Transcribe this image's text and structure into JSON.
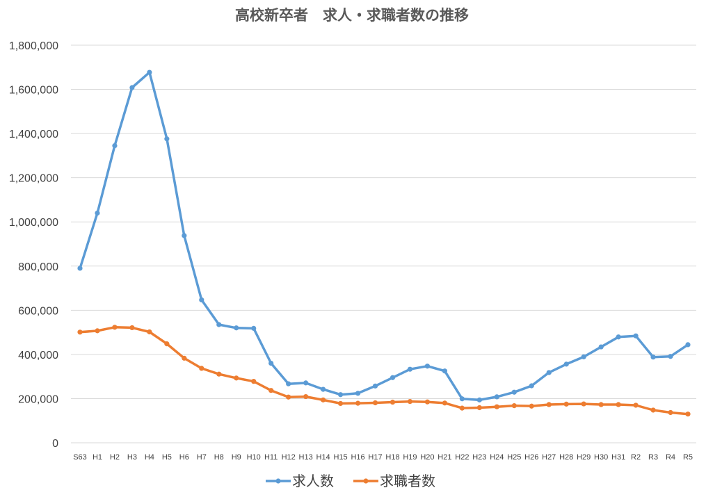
{
  "chart_data": {
    "type": "line",
    "title": "高校新卒者　求人・求職者数の推移",
    "xlabel": "",
    "ylabel": "",
    "categories": [
      "S63",
      "H1",
      "H2",
      "H3",
      "H4",
      "H5",
      "H6",
      "H7",
      "H8",
      "H9",
      "H10",
      "H11",
      "H12",
      "H13",
      "H14",
      "H15",
      "H16",
      "H17",
      "H18",
      "H19",
      "H20",
      "H21",
      "H22",
      "H23",
      "H24",
      "H25",
      "H26",
      "H27",
      "H28",
      "H29",
      "H30",
      "H31",
      "R2",
      "R3",
      "R4",
      "R5"
    ],
    "ylim": [
      0,
      1800000
    ],
    "yticks": [
      0,
      200000,
      400000,
      600000,
      800000,
      1000000,
      1200000,
      1400000,
      1600000,
      1800000
    ],
    "ytick_labels": [
      "0",
      "200,000",
      "400,000",
      "600,000",
      "800,000",
      "1,000,000",
      "1,200,000",
      "1,400,000",
      "1,600,000",
      "1,800,000"
    ],
    "grid": true,
    "legend_position": "bottom",
    "series": [
      {
        "name": "求人数",
        "color": "#5b9bd5",
        "values": [
          790000,
          1040000,
          1345000,
          1608000,
          1677000,
          1376000,
          938000,
          647000,
          535000,
          520000,
          518000,
          360000,
          267000,
          271000,
          242000,
          218000,
          224000,
          257000,
          295000,
          333000,
          347000,
          325000,
          199000,
          194000,
          208000,
          229000,
          258000,
          318000,
          356000,
          389000,
          434000,
          479000,
          484000,
          388000,
          391000,
          444000
        ]
      },
      {
        "name": "求職者数",
        "color": "#ed7d31",
        "values": [
          501000,
          507000,
          523000,
          521000,
          502000,
          448000,
          383000,
          337000,
          311000,
          293000,
          278000,
          237000,
          207000,
          209000,
          194000,
          178000,
          179000,
          181000,
          184000,
          187000,
          185000,
          180000,
          157000,
          159000,
          163000,
          168000,
          166000,
          173000,
          175000,
          176000,
          173000,
          173000,
          170000,
          148000,
          137000,
          130000
        ]
      }
    ]
  }
}
